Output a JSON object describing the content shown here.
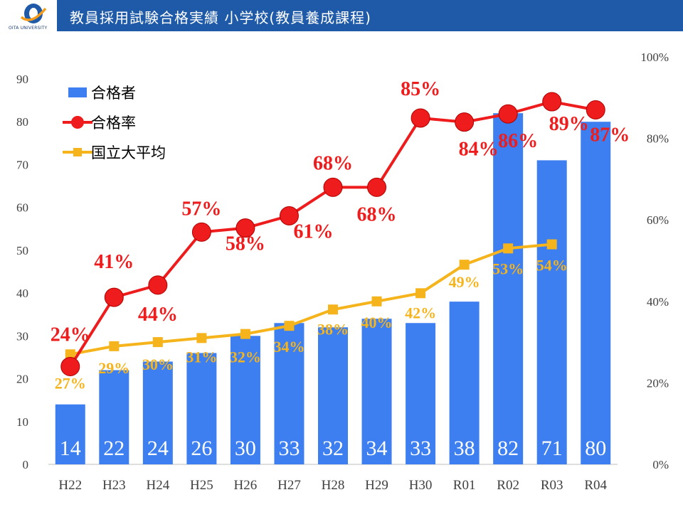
{
  "header": {
    "title": "教員採用試験合格実績 小学校(教員養成課程)",
    "logo_text": "OITA UNIVERSITY",
    "bar_color": "#1e5aa8"
  },
  "chart_data": {
    "type": "bar",
    "categories": [
      "H22",
      "H23",
      "H24",
      "H25",
      "H26",
      "H27",
      "H28",
      "H29",
      "H30",
      "R01",
      "R02",
      "R03",
      "R04"
    ],
    "series": [
      {
        "name": "合格者",
        "type": "bar",
        "axis": "left",
        "color": "#3d7ff0",
        "values": [
          14,
          22,
          24,
          26,
          30,
          33,
          32,
          34,
          33,
          38,
          82,
          71,
          80
        ],
        "labels": [
          "14",
          "22",
          "24",
          "26",
          "30",
          "33",
          "32",
          "34",
          "33",
          "38",
          "82",
          "71",
          "80"
        ]
      },
      {
        "name": "合格率",
        "type": "line",
        "axis": "right",
        "color": "#ee1c1c",
        "values": [
          24,
          41,
          44,
          57,
          58,
          61,
          68,
          68,
          85,
          84,
          86,
          89,
          87
        ],
        "labels": [
          "24%",
          "41%",
          "44%",
          "57%",
          "58%",
          "61%",
          "68%",
          "68%",
          "85%",
          "84%",
          "86%",
          "89%",
          "87%"
        ]
      },
      {
        "name": "国立大平均",
        "type": "line",
        "axis": "right",
        "color": "#f5b41b",
        "values": [
          27,
          29,
          30,
          31,
          32,
          34,
          38,
          40,
          42,
          49,
          53,
          54,
          null
        ],
        "labels": [
          "27%",
          "29%",
          "30%",
          "31%",
          "32%",
          "34%",
          "38%",
          "40%",
          "42%",
          "49%",
          "53%",
          "54%",
          ""
        ]
      }
    ],
    "y_left": {
      "min": 0,
      "max": 90,
      "ticks": [
        "0",
        "10",
        "20",
        "30",
        "40",
        "50",
        "60",
        "70",
        "80",
        "90"
      ]
    },
    "y_right": {
      "min": 0,
      "max": 100,
      "ticks": [
        "0%",
        "20%",
        "40%",
        "60%",
        "80%",
        "100%"
      ]
    },
    "legend_position": "top-left",
    "grid": false
  }
}
